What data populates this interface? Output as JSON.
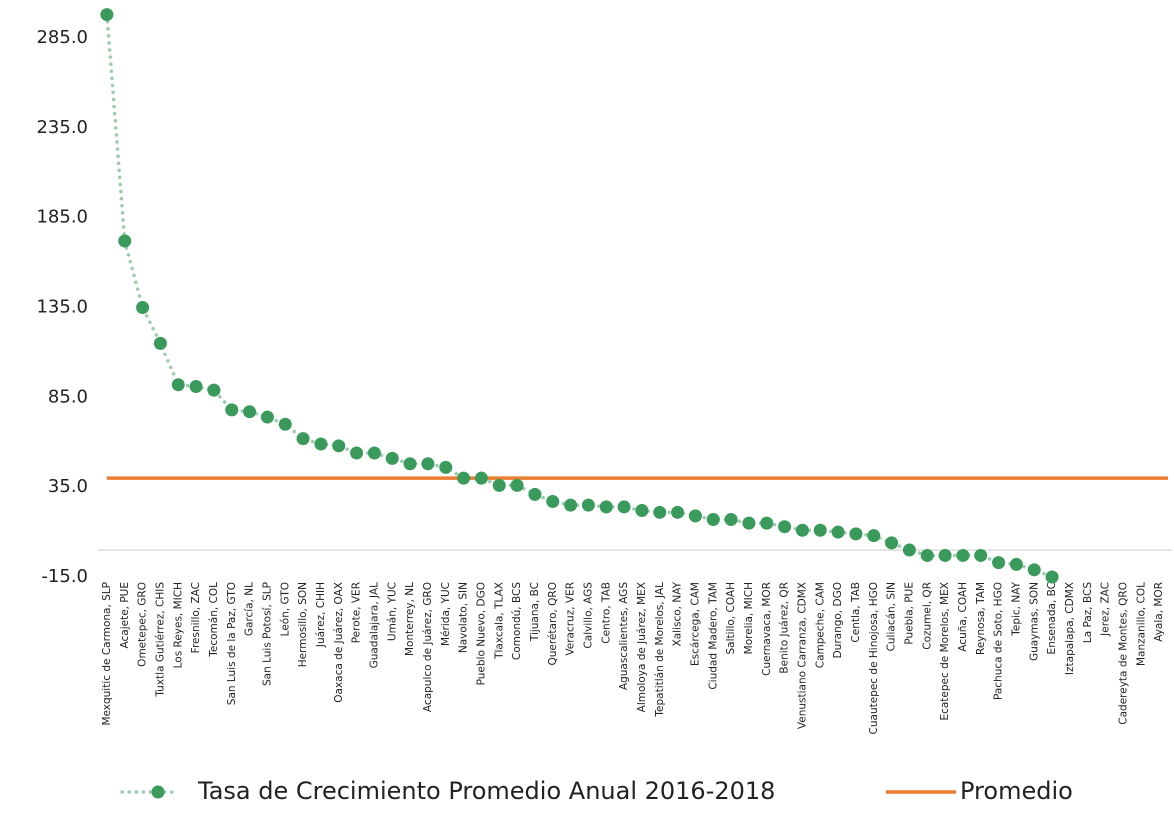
{
  "chart_data": {
    "type": "line",
    "categories": [
      "Mexquitic de Carmona, SLP",
      "Acajete, PUE",
      "Ometepec, GRO",
      "Tuxtla Gutiérrez, CHIS",
      "Los Reyes, MICH",
      "Fresnillo, ZAC",
      "Tecomán, COL",
      "San Luis de la Paz, GTO",
      "García, NL",
      "San Luis Potosí, SLP",
      "León, GTO",
      "Hermosillo, SON",
      "Juárez, CHIH",
      "Oaxaca de Juárez, OAX",
      "Perote, VER",
      "Guadalajara, JAL",
      "Umán, YUC",
      "Monterrey, NL",
      "Acapulco de Juárez, GRO",
      "Mérida, YUC",
      "Navolato, SIN",
      "Pueblo Nuevo, DGO",
      "Tlaxcala, TLAX",
      "Comondú, BCS",
      "Tijuana, BC",
      "Querétaro, QRO",
      "Veracruz, VER",
      "Calvillo, AGS",
      "Centro, TAB",
      "Aguascalientes, AGS",
      "Almoloya de Juárez, MEX",
      "Tepatitlán de Morelos, JAL",
      "Xalisco, NAY",
      "Escárcega, CAM",
      "Ciudad Madero, TAM",
      "Saltillo, COAH",
      "Morelia, MICH",
      "Cuernavaca, MOR",
      "Benito Juárez, QR",
      "Venustiano Carranza, CDMX",
      "Campeche, CAM",
      "Durango, DGO",
      "Centla, TAB",
      "Cuautepec de Hinojosa, HGO",
      "Culiacán, SIN",
      "Puebla, PUE",
      "Cozumel, QR",
      "Ecatepec de Morelos, MEX",
      "Acuña, COAH",
      "Reynosa, TAM",
      "Pachuca de Soto, HGO",
      "Tepic, NAY",
      "Guaymas, SON",
      "Ensenada, BC",
      "Iztapalapa, CDMX",
      "La Paz, BCS",
      "Jerez, ZAC",
      "Cadereyta de Montes, QRO",
      "Manzanillo, COL",
      "Ayala, MOR"
    ],
    "series": [
      {
        "name": "Tasa de Crecimiento Promedio Anual 2016-2018",
        "color": "#3a9a5c",
        "values": [
          298,
          172,
          135,
          115,
          92,
          91,
          89,
          78,
          77,
          74,
          70,
          62,
          59,
          58,
          54,
          54,
          51,
          48,
          48,
          46,
          40,
          40,
          36,
          36,
          31,
          27,
          25,
          25,
          24,
          24,
          22,
          21,
          21,
          19,
          17,
          17,
          15,
          15,
          13,
          11,
          11,
          10,
          9,
          8,
          4,
          0,
          -3,
          -3,
          -3,
          -3,
          -7,
          -8,
          -11,
          -15,
          null,
          null,
          null,
          null,
          null,
          null
        ]
      }
    ],
    "average": {
      "name": "Promedio",
      "value": 40,
      "color": "#ed7d31"
    },
    "ylim": [
      -15,
      305
    ],
    "yticks": [
      {
        "value": 285,
        "label": "285.0"
      },
      {
        "value": 235,
        "label": "235.0"
      },
      {
        "value": 185,
        "label": "185.0"
      },
      {
        "value": 135,
        "label": "135.0"
      },
      {
        "value": 85,
        "label": "85.0"
      },
      {
        "value": 35,
        "label": "35.0"
      },
      {
        "value": -15,
        "label": "-15.0"
      }
    ],
    "grid": false
  }
}
